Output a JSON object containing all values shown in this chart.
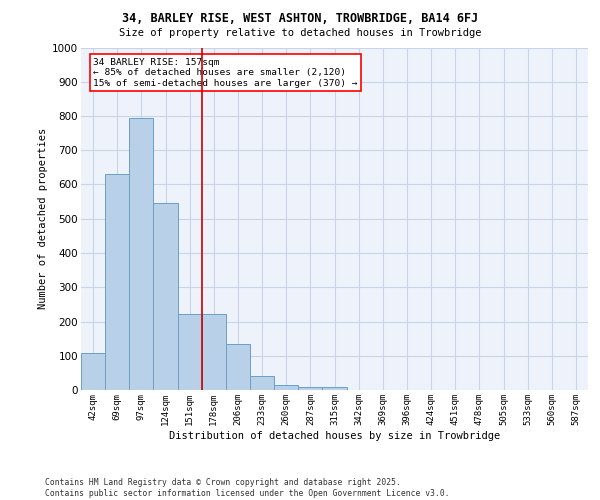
{
  "title1": "34, BARLEY RISE, WEST ASHTON, TROWBRIDGE, BA14 6FJ",
  "title2": "Size of property relative to detached houses in Trowbridge",
  "xlabel": "Distribution of detached houses by size in Trowbridge",
  "ylabel": "Number of detached properties",
  "categories": [
    "42sqm",
    "69sqm",
    "97sqm",
    "124sqm",
    "151sqm",
    "178sqm",
    "206sqm",
    "233sqm",
    "260sqm",
    "287sqm",
    "315sqm",
    "342sqm",
    "369sqm",
    "396sqm",
    "424sqm",
    "451sqm",
    "478sqm",
    "505sqm",
    "533sqm",
    "560sqm",
    "587sqm"
  ],
  "values": [
    108,
    630,
    795,
    547,
    222,
    222,
    135,
    42,
    15,
    10,
    10,
    0,
    0,
    0,
    0,
    0,
    0,
    0,
    0,
    0,
    0
  ],
  "bar_color": "#b8d0e8",
  "bar_edge_color": "#6a9fc8",
  "background_color": "#eef2fa",
  "grid_color": "#c8d4e8",
  "vline_color": "#cc0000",
  "vline_pos": 4.5,
  "annotation_title": "34 BARLEY RISE: 157sqm",
  "annotation_line1": "← 85% of detached houses are smaller (2,120)",
  "annotation_line2": "15% of semi-detached houses are larger (370) →",
  "footer1": "Contains HM Land Registry data © Crown copyright and database right 2025.",
  "footer2": "Contains public sector information licensed under the Open Government Licence v3.0.",
  "ylim": [
    0,
    1000
  ],
  "yticks": [
    0,
    100,
    200,
    300,
    400,
    500,
    600,
    700,
    800,
    900,
    1000
  ]
}
